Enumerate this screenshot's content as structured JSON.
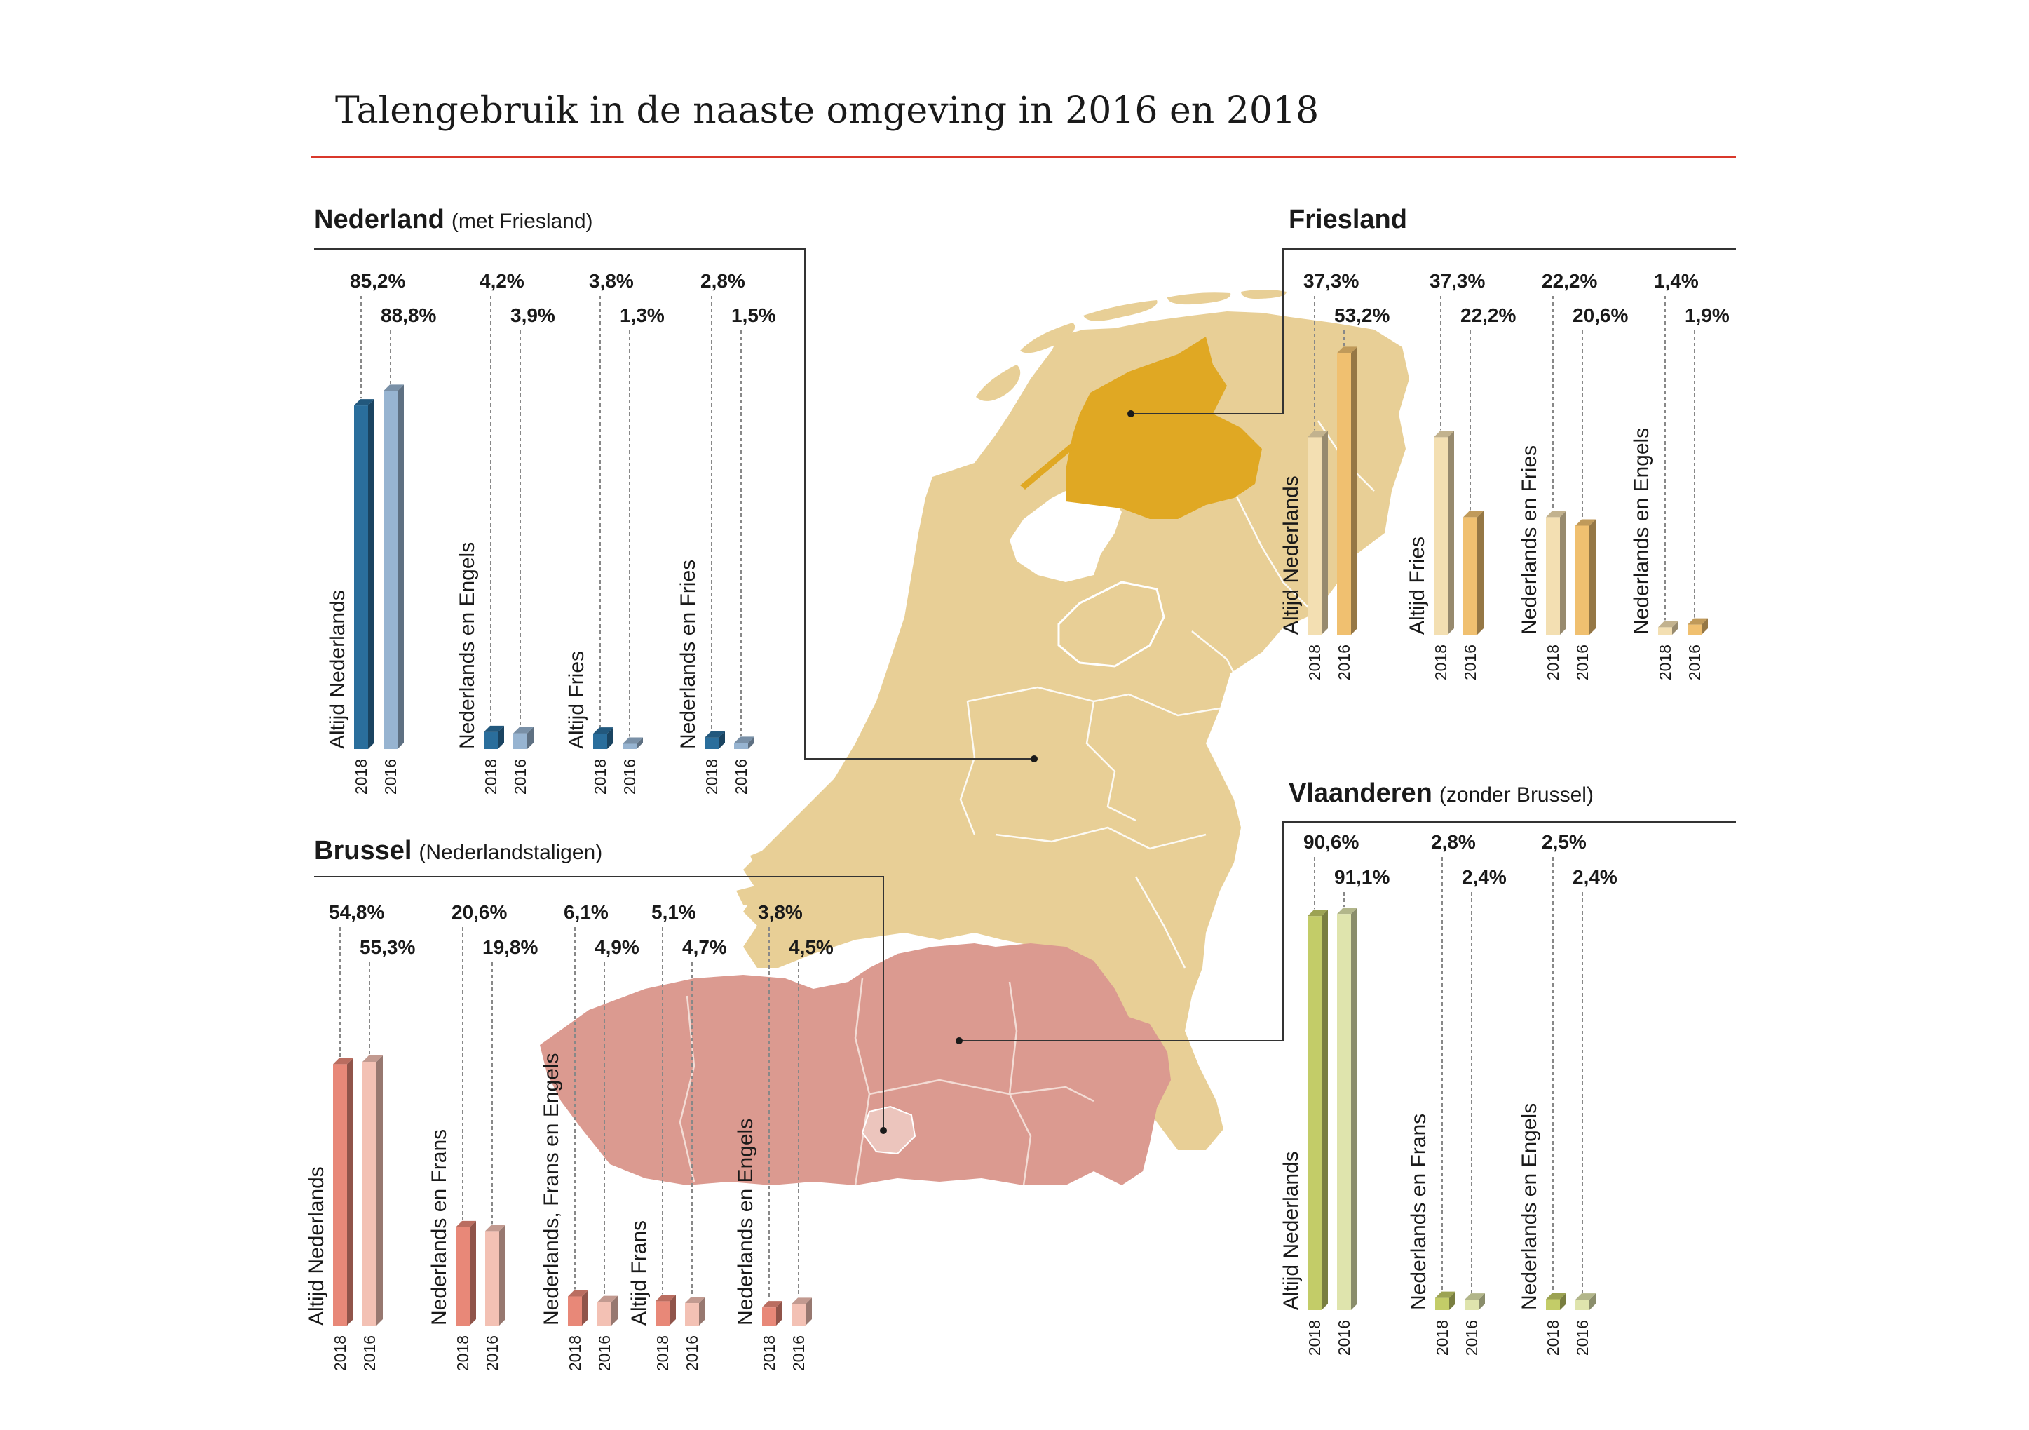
{
  "title": "Talengebruik in de naaste omgeving in 2016 en 2018",
  "colors": {
    "rule": "#d9382b",
    "map_land": "#e8cf96",
    "friesland_highlight": "#e0a823",
    "flanders_land": "#db9a90",
    "brussels_land": "#ecc5bd",
    "nederland_2018": "#2a6e9c",
    "nederland_2016": "#97b4d1",
    "friesland_2018": "#f3dfb2",
    "friesland_2016": "#f0c070",
    "brussel_2018": "#e88878",
    "brussel_2016": "#f3c1b4",
    "vlaanderen_2018": "#c3cc68",
    "vlaanderen_2016": "#dfe4ad"
  },
  "chart_data": [
    {
      "type": "bar",
      "title": "Nederland",
      "subtitle": "(met Friesland)",
      "series_years": [
        "2018",
        "2016"
      ],
      "categories": [
        "Altijd Nederlands",
        "Nederlands en Engels",
        "Altijd Fries",
        "Nederlands en Fries"
      ],
      "values_2018": [
        85.2,
        4.2,
        3.8,
        2.8
      ],
      "values_2016": [
        88.8,
        3.9,
        1.3,
        1.5
      ],
      "labels_2018": [
        "85,2%",
        "4,2%",
        "3,8%",
        "2,8%"
      ],
      "labels_2016": [
        "88,8%",
        "3,9%",
        "1,3%",
        "1,5%"
      ]
    },
    {
      "type": "bar",
      "title": "Friesland",
      "subtitle": "",
      "series_years": [
        "2018",
        "2016"
      ],
      "categories": [
        "Altijd Nederlands",
        "Altijd Fries",
        "Nederlands en Fries",
        "Nederlands en Engels"
      ],
      "values_2018": [
        37.3,
        37.3,
        22.2,
        1.4
      ],
      "values_2016": [
        53.2,
        22.2,
        20.6,
        1.9
      ],
      "labels_2018": [
        "37,3%",
        "37,3%",
        "22,2%",
        "1,4%"
      ],
      "labels_2016": [
        "53,2%",
        "22,2%",
        "20,6%",
        "1,9%"
      ]
    },
    {
      "type": "bar",
      "title": "Brussel",
      "subtitle": "(Nederlandstaligen)",
      "series_years": [
        "2018",
        "2016"
      ],
      "categories": [
        "Altijd Nederlands",
        "Nederlands en Frans",
        "Nederlands, Frans en Engels",
        "Altijd Frans",
        "Nederlands en Engels"
      ],
      "values_2018": [
        54.8,
        20.6,
        6.1,
        5.1,
        3.8
      ],
      "values_2016": [
        55.3,
        19.8,
        4.9,
        4.7,
        4.5
      ],
      "labels_2018": [
        "54,8%",
        "20,6%",
        "6,1%",
        "5,1%",
        "3,8%"
      ],
      "labels_2016": [
        "55,3%",
        "19,8%",
        "4,9%",
        "4,7%",
        "4,5%"
      ]
    },
    {
      "type": "bar",
      "title": "Vlaanderen",
      "subtitle": "(zonder Brussel)",
      "series_years": [
        "2018",
        "2016"
      ],
      "categories": [
        "Altijd Nederlands",
        "Nederlands en Frans",
        "Nederlands en Engels"
      ],
      "values_2018": [
        90.6,
        2.8,
        2.5
      ],
      "values_2016": [
        91.1,
        2.4,
        2.4
      ],
      "labels_2018": [
        "90,6%",
        "2,8%",
        "2,5%"
      ],
      "labels_2016": [
        "91,1%",
        "2,4%",
        "2,4%"
      ]
    }
  ]
}
